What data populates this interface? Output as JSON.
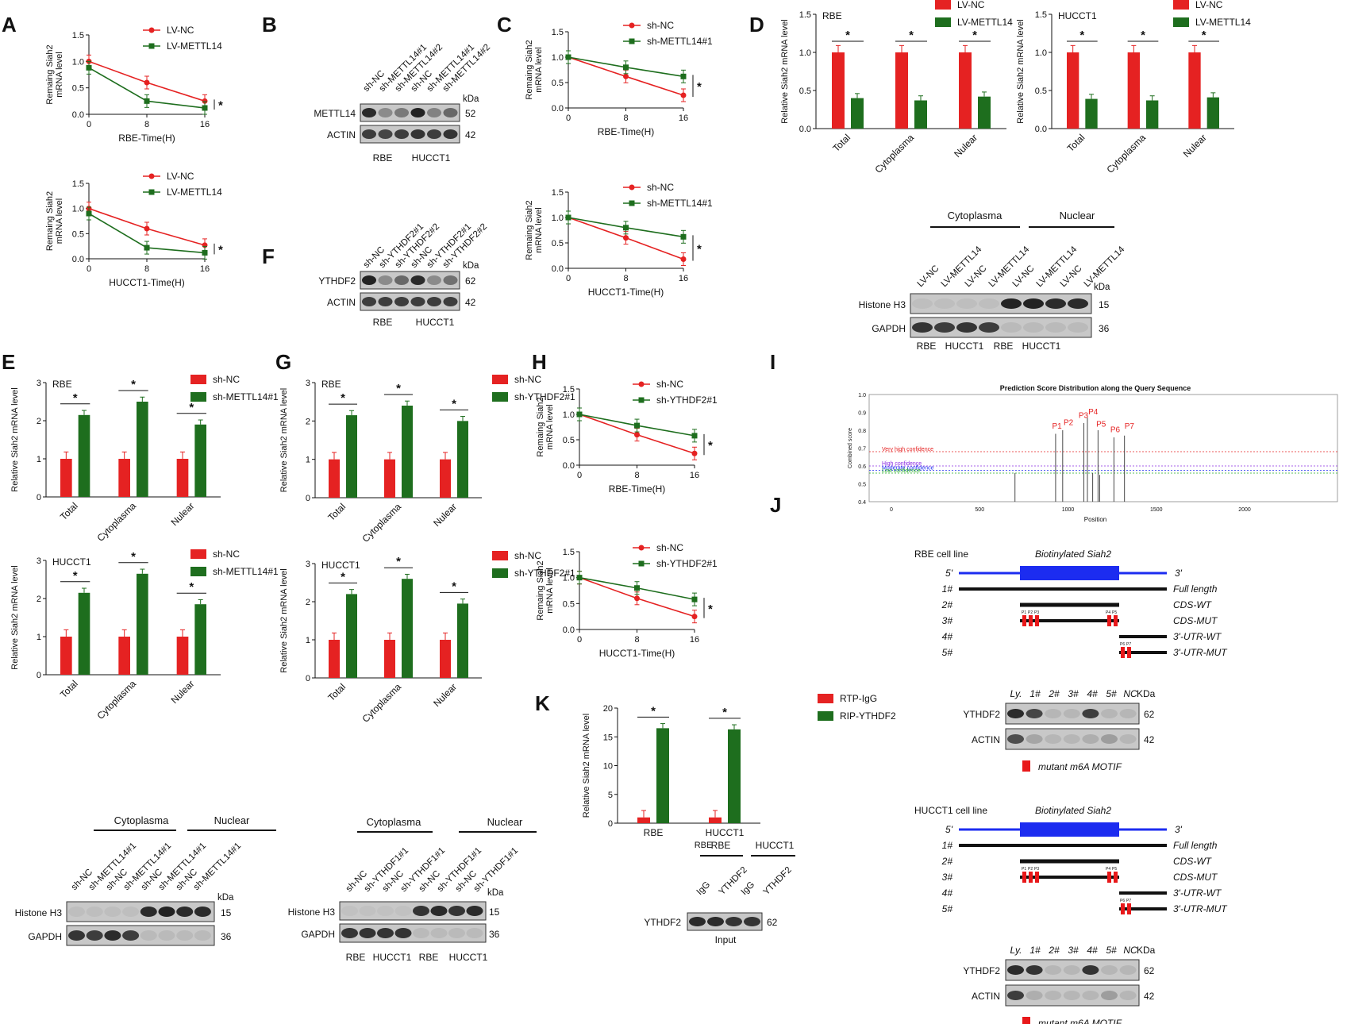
{
  "colors": {
    "red": "#e52222",
    "green": "#1e6e1e",
    "blot_dark": "#1a1a1a",
    "blot_bg": "#c8c8c8",
    "blue": "#1c2cf0",
    "motif": "#e8181a"
  },
  "panel_labels": [
    "A",
    "B",
    "C",
    "D",
    "E",
    "F",
    "G",
    "H",
    "I",
    "J",
    "K"
  ],
  "decay": [
    {
      "id": "A1",
      "xlabel": "RBE-Time(H)",
      "ylabel": "Remaing Siah2 mRNA level",
      "legend": [
        "LV-NC",
        "LV-METTL14"
      ],
      "x": [
        0,
        8,
        16
      ],
      "series": [
        [
          1.0,
          0.6,
          0.25
        ],
        [
          0.88,
          0.25,
          0.12
        ]
      ],
      "yticks": [
        "0.0",
        "0.5",
        "1.0",
        "1.5"
      ],
      "xticks": [
        "0",
        "8",
        "16"
      ],
      "star": "*"
    },
    {
      "id": "A2",
      "xlabel": "HUCCT1-Time(H)",
      "ylabel": "Remaing Siah2 mRNA level",
      "legend": [
        "LV-NC",
        "LV-METTL14"
      ],
      "x": [
        0,
        8,
        16
      ],
      "series": [
        [
          1.0,
          0.6,
          0.27
        ],
        [
          0.9,
          0.22,
          0.12
        ]
      ],
      "yticks": [
        "0.0",
        "0.5",
        "1.0",
        "1.5"
      ],
      "xticks": [
        "0",
        "8",
        "16"
      ],
      "star": "*"
    },
    {
      "id": "C1",
      "xlabel": "RBE-Time(H)",
      "ylabel": "Remaing Siah2 mRNA level",
      "legend": [
        "sh-NC",
        "sh-METTL14#1"
      ],
      "x": [
        0,
        8,
        16
      ],
      "series": [
        [
          1.0,
          0.62,
          0.25
        ],
        [
          1.0,
          0.8,
          0.62
        ]
      ],
      "yticks": [
        "0.0",
        "0.5",
        "1.0",
        "1.5"
      ],
      "xticks": [
        "0",
        "8",
        "16"
      ],
      "star": "*"
    },
    {
      "id": "C2",
      "xlabel": "HUCCT1-Time(H)",
      "ylabel": "Remaing Siah2 mRNA level",
      "legend": [
        "sh-NC",
        "sh-METTL14#1"
      ],
      "x": [
        0,
        8,
        16
      ],
      "series": [
        [
          1.0,
          0.6,
          0.18
        ],
        [
          1.0,
          0.8,
          0.62
        ]
      ],
      "yticks": [
        "0.0",
        "0.5",
        "1.0",
        "1.5"
      ],
      "xticks": [
        "0",
        "8",
        "16"
      ],
      "star": "*"
    },
    {
      "id": "H1",
      "xlabel": "RBE-Time(H)",
      "ylabel": "Remaing Siah2 mRNA level",
      "legend": [
        "sh-NC",
        "sh-YTHDF2#1"
      ],
      "x": [
        0,
        8,
        16
      ],
      "series": [
        [
          1.0,
          0.6,
          0.23
        ],
        [
          1.0,
          0.78,
          0.58
        ]
      ],
      "yticks": [
        "0.0",
        "0.5",
        "1.0",
        "1.5"
      ],
      "xticks": [
        "0",
        "8",
        "16"
      ],
      "star": "*"
    },
    {
      "id": "H2",
      "xlabel": "HUCCT1-Time(H)",
      "ylabel": "Remaing Siah2 mRNA level",
      "legend": [
        "sh-NC",
        "sh-YTHDF2#1"
      ],
      "x": [
        0,
        8,
        16
      ],
      "series": [
        [
          1.0,
          0.6,
          0.25
        ],
        [
          1.0,
          0.8,
          0.58
        ]
      ],
      "yticks": [
        "0.0",
        "0.5",
        "1.0",
        "1.5"
      ],
      "xticks": [
        "0",
        "8",
        "16"
      ],
      "star": "*"
    }
  ],
  "bars": [
    {
      "id": "D1",
      "sub": "RBE",
      "legend": [
        "LV-NC",
        "LV-METTL14"
      ],
      "ylabel": "Relative Siah2 mRNA level",
      "cats": [
        "Total",
        "Cytoplasma",
        "Nulear"
      ],
      "v1": [
        1.0,
        1.0,
        1.0
      ],
      "v2": [
        0.4,
        0.37,
        0.42
      ],
      "ymax": 1.5,
      "yticks": [
        "0.0",
        "0.5",
        "1.0",
        "1.5"
      ],
      "star": "*"
    },
    {
      "id": "D2",
      "sub": "HUCCT1",
      "legend": [
        "LV-NC",
        "LV-METTL14"
      ],
      "ylabel": "Relative Siah2 mRNA level",
      "cats": [
        "Total",
        "Cytoplasma",
        "Nulear"
      ],
      "v1": [
        1.0,
        1.0,
        1.0
      ],
      "v2": [
        0.39,
        0.37,
        0.41
      ],
      "ymax": 1.5,
      "yticks": [
        "0.0",
        "0.5",
        "1.0",
        "1.5"
      ],
      "star": "*"
    },
    {
      "id": "E1",
      "sub": "RBE",
      "legend": [
        "sh-NC",
        "sh-METTL14#1"
      ],
      "ylabel": "Relative Siah2 mRNA level",
      "cats": [
        "Total",
        "Cytoplasma",
        "Nulear"
      ],
      "v1": [
        1.0,
        1.0,
        1.0
      ],
      "v2": [
        2.15,
        2.5,
        1.9
      ],
      "ymax": 3,
      "yticks": [
        "0",
        "1",
        "2",
        "3"
      ],
      "star": "*"
    },
    {
      "id": "E2",
      "sub": "HUCCT1",
      "legend": [
        "sh-NC",
        "sh-METTL14#1"
      ],
      "ylabel": "Relative Siah2 mRNA level",
      "cats": [
        "Total",
        "Cytoplasma",
        "Nulear"
      ],
      "v1": [
        1.0,
        1.0,
        1.0
      ],
      "v2": [
        2.15,
        2.65,
        1.85
      ],
      "ymax": 3,
      "yticks": [
        "0",
        "1",
        "2",
        "3"
      ],
      "star": "*"
    },
    {
      "id": "G1",
      "sub": "RBE",
      "legend": [
        "sh-NC",
        "sh-YTHDF2#1"
      ],
      "ylabel": "Relative Siah2 mRNA level",
      "cats": [
        "Total",
        "Cytoplasma",
        "Nulear"
      ],
      "v1": [
        1.0,
        1.0,
        1.0
      ],
      "v2": [
        2.15,
        2.4,
        2.0
      ],
      "ymax": 3,
      "yticks": [
        "0",
        "1",
        "2",
        "3"
      ],
      "star": "*"
    },
    {
      "id": "G2",
      "sub": "HUCCT1",
      "legend": [
        "sh-NC",
        "sh-YTHDF2#1"
      ],
      "ylabel": "Relative Siah2 mRNA level",
      "cats": [
        "Total",
        "Cytoplasma",
        "Nulear"
      ],
      "v1": [
        1.0,
        1.0,
        1.0
      ],
      "v2": [
        2.2,
        2.6,
        1.95
      ],
      "ymax": 3,
      "yticks": [
        "0",
        "1",
        "2",
        "3"
      ],
      "star": "*"
    },
    {
      "id": "I",
      "sub": "",
      "legend": [
        "RTP-IgG",
        "RIP-YTHDF2"
      ],
      "ylabel": "Relative Siah2 mRNA level",
      "cats": [
        "RBE",
        "HUCCT1"
      ],
      "v1": [
        1.0,
        1.0
      ],
      "v2": [
        16.5,
        16.3
      ],
      "ymax": 20,
      "yticks": [
        "0",
        "5",
        "10",
        "15",
        "20"
      ],
      "star": "*"
    }
  ],
  "blots": {
    "B": {
      "lanes": [
        "sh-NC",
        "sh-METTL14#1",
        "sh-METTL14#2",
        "sh-NC",
        "sh-METTL14#1",
        "sh-METTL14#2"
      ],
      "rows": [
        {
          "name": "METTL14",
          "kda": "52"
        },
        {
          "name": "ACTIN",
          "kda": "42"
        }
      ],
      "unit": "kDa",
      "groups": [
        "RBE",
        "HUCCT1"
      ]
    },
    "F": {
      "lanes": [
        "sh-NC",
        "sh-YTHDF2#1",
        "sh-YTHDF2#2",
        "sh-NC",
        "sh-YTHDF2#1",
        "sh-YTHDF2#2"
      ],
      "rows": [
        {
          "name": "YTHDF2",
          "kda": "62"
        },
        {
          "name": "ACTIN",
          "kda": "42"
        }
      ],
      "unit": "kDa",
      "groups": [
        "RBE",
        "HUCCT1"
      ]
    },
    "D": {
      "headers": [
        "Cytoplasma",
        "Nuclear"
      ],
      "lanes": [
        "LV-NC",
        "LV-METTL14",
        "LV-NC",
        "LV-METTL14",
        "LV-NC",
        "LV-METTL14",
        "LV-NC",
        "LV-METTL14"
      ],
      "rows": [
        {
          "name": "Histone H3",
          "kda": "15"
        },
        {
          "name": "GAPDH",
          "kda": "36"
        }
      ],
      "unit": "kDa",
      "groups": [
        "RBE",
        "HUCCT1",
        "RBE",
        "HUCCT1"
      ]
    },
    "E": {
      "headers": [
        "Cytoplasma",
        "Nuclear"
      ],
      "lanes": [
        "sh-NC",
        "sh-METTL14#1",
        "sh-NC",
        "sh-METTL14#1",
        "sh-NC",
        "sh-METTL14#1",
        "sh-NC",
        "sh-METTL14#1"
      ],
      "rows": [
        {
          "name": "Histone H3",
          "kda": "15"
        },
        {
          "name": "GAPDH",
          "kda": "36"
        }
      ],
      "unit": "kDa"
    },
    "G": {
      "headers": [
        "Cytoplasma",
        "Nuclear"
      ],
      "lanes": [
        "sh-NC",
        "sh-YTHDF1#1",
        "sh-NC",
        "sh-YTHDF1#1",
        "sh-NC",
        "sh-YTHDF1#1",
        "sh-NC",
        "sh-YTHDF1#1"
      ],
      "rows": [
        {
          "name": "Histone H3",
          "kda": "15"
        },
        {
          "name": "GAPDH",
          "kda": "36"
        }
      ],
      "unit": "kDa",
      "groups": [
        "RBE",
        "HUCCT1",
        "RBE",
        "HUCCT1"
      ]
    },
    "I": {
      "lanes": [
        "IgG",
        "YTHDF2",
        "IgG",
        "YTHDF2"
      ],
      "groups": [
        "RBE",
        "HUCCT1"
      ],
      "rows": [
        {
          "name": "YTHDF2",
          "kda": "62"
        }
      ],
      "footer": "Input"
    }
  },
  "J": {
    "title": "Prediction Score Distribution along the Query Sequence",
    "ylabel": "Combined score",
    "xlabel": "Position",
    "xticks": [
      "0",
      "500",
      "1000",
      "1500",
      "2000"
    ],
    "yticks": [
      "0.4",
      "0.5",
      "0.6",
      "0.7",
      "0.8",
      "0.9",
      "1.0"
    ],
    "conf": [
      "Very high confidence",
      "High confidence",
      "Moderate confidence",
      "Low confidence"
    ],
    "peaks": [
      "P1",
      "P2",
      "P3",
      "P4",
      "P5",
      "P6",
      "P7"
    ]
  },
  "K": {
    "lines": [
      {
        "title": "RBE cell line",
        "construct": "Biotinylated Siah2",
        "motif": "mutant m6A MOTIF"
      },
      {
        "title": "HUCCT1 cell line",
        "construct": "Biotinylated Siah2",
        "motif": "mutant m6A MOTIF"
      }
    ],
    "ends": [
      "5'",
      "3'"
    ],
    "rows": [
      {
        "n": "1#",
        "label": "Full length"
      },
      {
        "n": "2#",
        "label": "CDS-WT"
      },
      {
        "n": "3#",
        "label": "CDS-MUT"
      },
      {
        "n": "4#",
        "label": "3'-UTR-WT"
      },
      {
        "n": "5#",
        "label": "3'-UTR-MUT"
      }
    ],
    "cds_sites": [
      "P1",
      "P2",
      "P3",
      "P4",
      "P5"
    ],
    "utr_sites": [
      "P6",
      "P7"
    ],
    "lanes": [
      "Ly.",
      "1#",
      "2#",
      "3#",
      "4#",
      "5#",
      "NC"
    ],
    "unit": "KDa",
    "blot_rows": [
      {
        "name": "YTHDF2",
        "kda": "62"
      },
      {
        "name": "ACTIN",
        "kda": "42"
      }
    ]
  }
}
